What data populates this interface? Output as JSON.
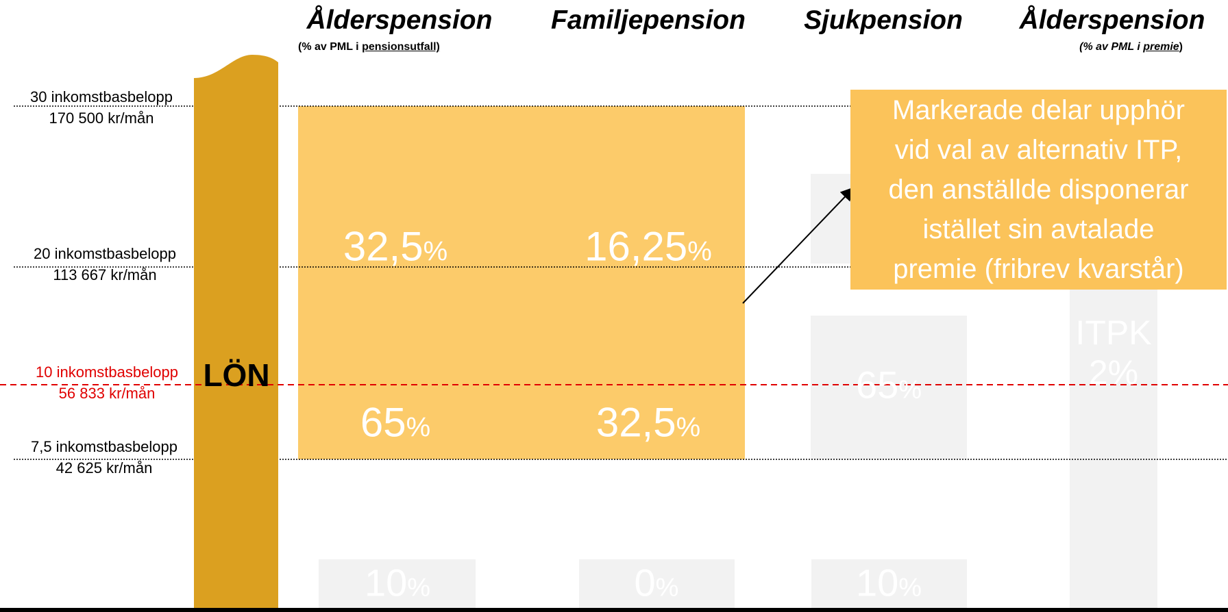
{
  "headers": [
    {
      "title": "Ålderspension",
      "subtitle_before": "(% av PML i ",
      "subtitle_underlined": "pensionsutfall)"
    },
    {
      "title": "Familjepension"
    },
    {
      "title": "Sjukpension"
    },
    {
      "title": "Ålderspension",
      "subtitle_before": "(% av PML i ",
      "subtitle_underlined": "premie",
      "subtitle_after": ")"
    }
  ],
  "levels": [
    {
      "name": "30 inkomstbasbelopp",
      "amount": "170 500 kr/mån"
    },
    {
      "name": "20 inkomstbasbelopp",
      "amount": "113 667 kr/mån"
    },
    {
      "name": "10 inkomstbasbelopp",
      "amount": "56 833 kr/mån"
    },
    {
      "name": "7,5 inkomstbasbelopp",
      "amount": "42 625 kr/mån"
    }
  ],
  "salary_label": "LÖN",
  "highlighted": [
    {
      "number": "32,5",
      "unit": "%"
    },
    {
      "number": "16,25",
      "unit": "%"
    },
    {
      "number": "65",
      "unit": "%"
    },
    {
      "number": "32,5",
      "unit": "%"
    }
  ],
  "faded": [
    {
      "number": "65",
      "unit": "%"
    },
    {
      "number": "10",
      "unit": "%"
    },
    {
      "number": "0",
      "unit": "%"
    },
    {
      "number": "10",
      "unit": "%"
    }
  ],
  "itpk": {
    "name": "ITPK",
    "number": "2",
    "unit": "%"
  },
  "callout": [
    "Markerade delar upphör",
    "vid val av alternativ ITP,",
    "den anställde disponerar",
    "istället sin avtalade",
    "premie (fribrev  kvarstår)"
  ]
}
